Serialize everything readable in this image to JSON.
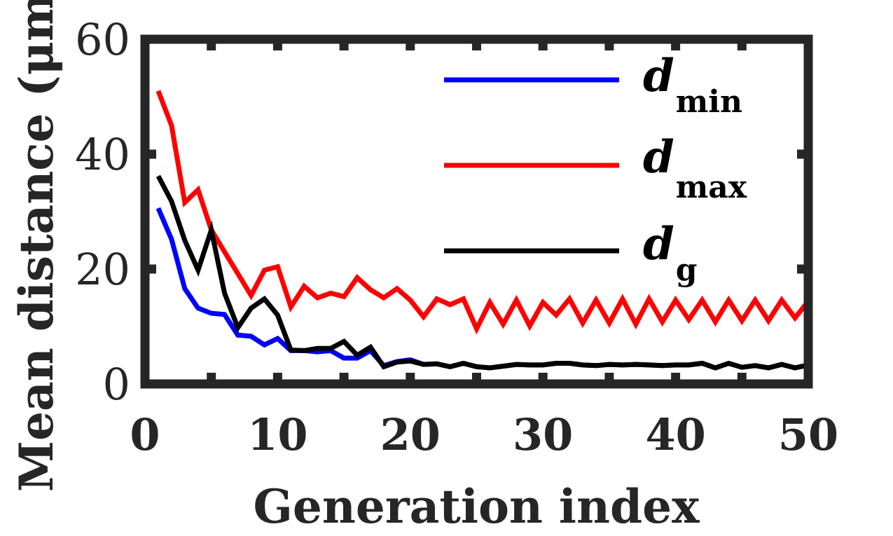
{
  "chart_data": {
    "type": "line",
    "xlabel": "Generation index",
    "ylabel": "Mean distance (μm)",
    "xlim": [
      0,
      50
    ],
    "ylim": [
      0,
      60
    ],
    "xticks": [
      "0",
      "10",
      "20",
      "30",
      "40",
      "50"
    ],
    "yticks": [
      "0",
      "20",
      "40",
      "60"
    ],
    "legend_position": "top-right",
    "grid": false,
    "series": [
      {
        "name": "min",
        "color": "#0000ff",
        "x": [
          1,
          2,
          3,
          4,
          5,
          6,
          7,
          8,
          9,
          10,
          11,
          12,
          13,
          14,
          15,
          16,
          17,
          18,
          19,
          20,
          21,
          22,
          23,
          24,
          25,
          26,
          27,
          28,
          29,
          30,
          31,
          32,
          33,
          34,
          35,
          36,
          37,
          38,
          39,
          40,
          41,
          42,
          43,
          44,
          45,
          46,
          47,
          48,
          49,
          50
        ],
        "values": [
          30.6,
          25.2,
          16.6,
          13.2,
          12.3,
          12.1,
          8.5,
          8.3,
          6.8,
          7.9,
          5.8,
          5.8,
          5.6,
          5.8,
          4.5,
          4.5,
          5.8,
          3.2,
          3.9,
          4.2,
          3.4,
          3.5,
          3.0,
          3.6,
          3.0,
          2.8,
          3.1,
          3.4,
          3.3,
          3.3,
          3.6,
          3.6,
          3.3,
          3.2,
          3.4,
          3.3,
          3.4,
          3.3,
          3.2,
          3.3,
          3.3,
          3.6,
          2.8,
          3.6,
          2.9,
          3.2,
          2.8,
          3.4,
          2.8,
          3.3
        ]
      },
      {
        "name": "max",
        "color": "#ff0000",
        "x": [
          1,
          2,
          3,
          4,
          5,
          6,
          7,
          8,
          9,
          10,
          11,
          12,
          13,
          14,
          15,
          16,
          17,
          18,
          19,
          20,
          21,
          22,
          23,
          24,
          25,
          26,
          27,
          28,
          29,
          30,
          31,
          32,
          33,
          34,
          35,
          36,
          37,
          38,
          39,
          40,
          41,
          42,
          43,
          44,
          45,
          46,
          47,
          48,
          49,
          50
        ],
        "values": [
          51.0,
          45.0,
          31.6,
          33.8,
          26.8,
          23.0,
          19.2,
          15.4,
          19.8,
          20.4,
          13.4,
          17.0,
          15.0,
          15.8,
          15.2,
          18.5,
          16.4,
          15.0,
          16.6,
          14.6,
          11.7,
          14.8,
          13.8,
          14.8,
          9.6,
          14.2,
          10.4,
          14.6,
          10.1,
          14.2,
          12.0,
          14.8,
          10.6,
          14.6,
          10.6,
          14.8,
          10.4,
          14.8,
          10.8,
          14.6,
          11.2,
          14.6,
          10.8,
          14.6,
          11.0,
          14.6,
          11.0,
          14.6,
          11.5,
          14.4
        ]
      },
      {
        "name": "g",
        "color": "#000000",
        "x": [
          1,
          2,
          3,
          4,
          5,
          6,
          7,
          8,
          9,
          10,
          11,
          12,
          13,
          14,
          15,
          16,
          17,
          18,
          19,
          20,
          21,
          22,
          23,
          24,
          25,
          26,
          27,
          28,
          29,
          30,
          31,
          32,
          33,
          34,
          35,
          36,
          37,
          38,
          39,
          40,
          41,
          42,
          43,
          44,
          45,
          46,
          47,
          48,
          49,
          50
        ],
        "values": [
          36.2,
          31.8,
          25.0,
          19.8,
          26.8,
          15.8,
          9.8,
          13.2,
          14.8,
          12.0,
          5.9,
          5.8,
          6.2,
          6.2,
          7.4,
          5.0,
          6.4,
          3.0,
          3.8,
          4.0,
          3.4,
          3.5,
          3.0,
          3.6,
          3.0,
          2.8,
          3.1,
          3.4,
          3.3,
          3.3,
          3.6,
          3.6,
          3.3,
          3.2,
          3.4,
          3.3,
          3.4,
          3.3,
          3.2,
          3.3,
          3.3,
          3.6,
          2.8,
          3.6,
          2.9,
          3.2,
          2.8,
          3.4,
          2.8,
          3.3
        ]
      }
    ],
    "legend": [
      {
        "main": "d",
        "sub": "min",
        "color": "#0000ff"
      },
      {
        "main": "d",
        "sub": "max",
        "color": "#ff0000"
      },
      {
        "main": "d",
        "sub": "g",
        "color": "#000000"
      }
    ]
  }
}
